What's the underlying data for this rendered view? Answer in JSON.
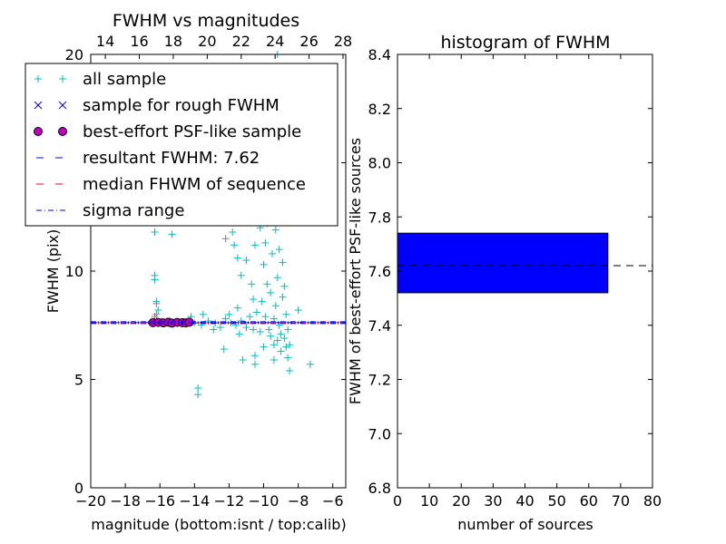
{
  "chart_data": [
    {
      "type": "scatter",
      "title": "FWHM vs magnitudes",
      "xlabel": "magnitude (bottom:isnt / top:calib)",
      "ylabel": "FWHM (pix)",
      "xlim": [
        -20,
        -5.25
      ],
      "ylim": [
        0,
        20
      ],
      "top_xlim": [
        13.14,
        28.16
      ],
      "xticks": [
        -20,
        -18,
        -16,
        -14,
        -12,
        -10,
        -8,
        -6
      ],
      "xtick_labels": [
        "−20",
        "−18",
        "−16",
        "−14",
        "−12",
        "−10",
        "−8",
        "−6"
      ],
      "top_xticks": [
        14,
        16,
        18,
        20,
        22,
        24,
        26,
        28
      ],
      "yticks": [
        0,
        5,
        10,
        15,
        20
      ],
      "legend": {
        "placement": "upper-left",
        "entries": [
          "all sample",
          "sample for rough FWHM",
          "best-effort PSF-like sample",
          "resultant FWHM: 7.62",
          "median FHWM of sequence",
          "sigma range"
        ]
      },
      "colors": {
        "all": "#00bfbf",
        "rough": "#0000ff",
        "best": "#bf00bf",
        "resultant": "#0000ff",
        "median": "#ff0000",
        "sigma": "#0000ff",
        "gray": "#808080"
      },
      "resultant_fwhm": 7.62,
      "median_fwhm": 7.62,
      "sigma_range": [
        7.58,
        7.66
      ],
      "series": [
        {
          "name": "all sample",
          "points": [
            [
              -16.3,
              11.8
            ],
            [
              -16.3,
              9.8
            ],
            [
              -16.3,
              9.6
            ],
            [
              -16.2,
              8.6
            ],
            [
              -16.1,
              8.2
            ],
            [
              -15.3,
              11.7
            ],
            [
              -13.8,
              4.6
            ],
            [
              -13.8,
              4.3
            ],
            [
              -12.3,
              6.4
            ],
            [
              -11.2,
              5.9
            ],
            [
              -10.5,
              6.1
            ],
            [
              -10.5,
              5.7
            ],
            [
              -8.5,
              5.4
            ],
            [
              -7.3,
              5.7
            ],
            [
              -8.0,
              8.2
            ],
            [
              -14.2,
              7.9
            ],
            [
              -14.0,
              7.6
            ],
            [
              -13.6,
              7.5
            ],
            [
              -13.2,
              7.7
            ],
            [
              -12.8,
              7.6
            ],
            [
              -12.5,
              7.4
            ],
            [
              -12.2,
              7.8
            ],
            [
              -11.9,
              7.6
            ],
            [
              -11.6,
              7.5
            ],
            [
              -11.3,
              7.7
            ],
            [
              -11.0,
              7.4
            ],
            [
              -10.8,
              7.9
            ],
            [
              -10.6,
              7.3
            ],
            [
              -10.4,
              8.1
            ],
            [
              -10.2,
              7.2
            ],
            [
              -13.5,
              8.0
            ],
            [
              -12.9,
              7.3
            ],
            [
              -12.0,
              8.0
            ],
            [
              -11.5,
              8.3
            ],
            [
              -11.4,
              7.1
            ],
            [
              -11.8,
              11.8
            ],
            [
              -11.7,
              11.2
            ],
            [
              -11.5,
              10.6
            ],
            [
              -11.3,
              9.8
            ],
            [
              -11.0,
              10.5
            ],
            [
              -10.7,
              9.4
            ],
            [
              -10.6,
              8.7
            ],
            [
              -10.9,
              12.6
            ],
            [
              -10.5,
              11.2
            ],
            [
              -10.4,
              13.5
            ],
            [
              -10.2,
              12.0
            ],
            [
              -10.0,
              14.5
            ],
            [
              -10.0,
              10.3
            ],
            [
              -9.9,
              11.3
            ],
            [
              -9.8,
              16.0
            ],
            [
              -9.8,
              9.4
            ],
            [
              -9.7,
              12.8
            ],
            [
              -9.6,
              7.0
            ],
            [
              -9.6,
              18.0
            ],
            [
              -9.5,
              10.8
            ],
            [
              -9.5,
              13.9
            ],
            [
              -9.4,
              6.6
            ],
            [
              -9.4,
              15.2
            ],
            [
              -9.3,
              8.4
            ],
            [
              -9.3,
              11.9
            ],
            [
              -9.2,
              20.0
            ],
            [
              -9.2,
              9.7
            ],
            [
              -9.1,
              14.0
            ],
            [
              -9.1,
              7.5
            ],
            [
              -9.0,
              12.5
            ],
            [
              -9.0,
              6.3
            ],
            [
              -8.9,
              10.4
            ],
            [
              -8.9,
              8.8
            ],
            [
              -8.8,
              9.3
            ],
            [
              -8.8,
              6.9
            ],
            [
              -8.7,
              8.0
            ],
            [
              -8.7,
              6.5
            ],
            [
              -8.6,
              7.3
            ],
            [
              -8.6,
              6.0
            ],
            [
              -8.5,
              6.6
            ],
            [
              -9.7,
              7.3
            ],
            [
              -9.9,
              7.9
            ],
            [
              -10.1,
              8.6
            ],
            [
              -9.4,
              7.8
            ],
            [
              -9.0,
              7.1
            ],
            [
              -9.6,
              9.0
            ],
            [
              -9.8,
              12.2
            ],
            [
              -9.3,
              17.0
            ],
            [
              -9.5,
              19.0
            ],
            [
              -10.3,
              15.5
            ],
            [
              -9.1,
              11.0
            ],
            [
              -8.9,
              13.0
            ],
            [
              -9.4,
              5.9
            ],
            [
              -9.2,
              6.8
            ],
            [
              -10.0,
              6.5
            ]
          ]
        },
        {
          "name": "gray",
          "points": [
            [
              -16.2,
              8.5
            ],
            [
              -16.2,
              8.0
            ],
            [
              -16.3,
              7.9
            ],
            [
              -12.2,
              11.5
            ],
            [
              -15.9,
              7.7
            ]
          ]
        },
        {
          "name": "sample for rough FWHM",
          "points": [
            [
              -16.4,
              7.62
            ],
            [
              -16.0,
              7.62
            ],
            [
              -15.6,
              7.62
            ],
            [
              -15.2,
              7.62
            ],
            [
              -14.8,
              7.62
            ],
            [
              -14.4,
              7.62
            ]
          ]
        },
        {
          "name": "best-effort PSF-like sample",
          "points": [
            [
              -16.4,
              7.62
            ],
            [
              -16.1,
              7.63
            ],
            [
              -15.8,
              7.61
            ],
            [
              -15.5,
              7.64
            ],
            [
              -15.3,
              7.6
            ],
            [
              -15.0,
              7.63
            ],
            [
              -14.7,
              7.62
            ],
            [
              -14.5,
              7.61
            ],
            [
              -14.3,
              7.64
            ]
          ]
        }
      ]
    },
    {
      "type": "bar",
      "orientation": "horizontal",
      "title": "histogram of FWHM",
      "xlabel": "number of sources",
      "ylabel": "FWHM of best-effort PSF-like sources",
      "xlim": [
        0,
        80
      ],
      "ylim": [
        6.8,
        8.4
      ],
      "xticks": [
        0,
        10,
        20,
        30,
        40,
        50,
        60,
        70,
        80
      ],
      "yticks": [
        "6.8",
        "7.0",
        "7.2",
        "7.4",
        "7.6",
        "7.8",
        "8.0",
        "8.2",
        "8.4"
      ],
      "bars": [
        {
          "bin": [
            7.52,
            7.74
          ],
          "value": 66,
          "color": "#0000ff"
        }
      ],
      "reference_line": 7.62
    }
  ]
}
